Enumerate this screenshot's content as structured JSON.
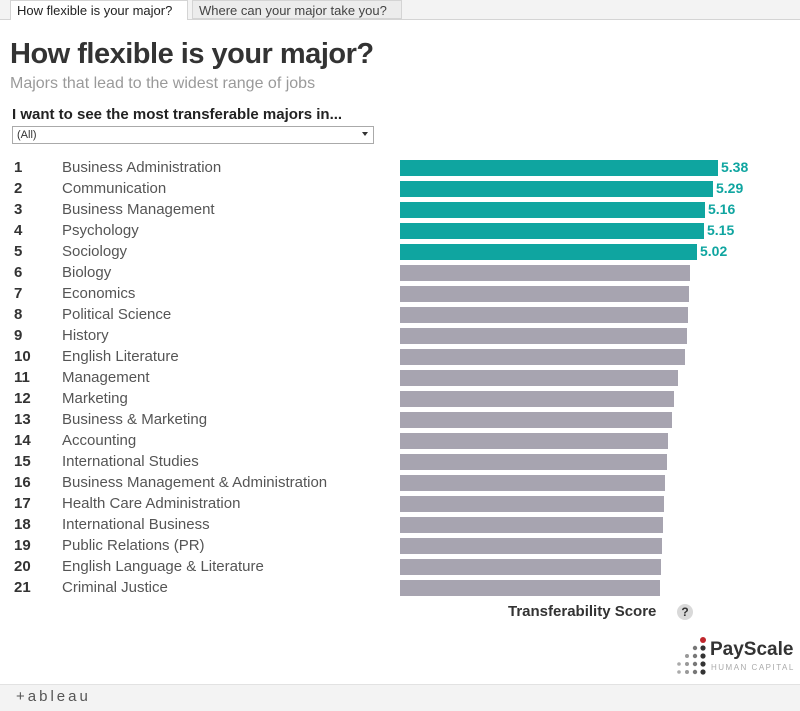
{
  "tabs": [
    {
      "label": "How flexible is your major?",
      "active": true
    },
    {
      "label": "Where can your major take you?",
      "active": false
    }
  ],
  "header": {
    "title": "How flexible is your major?",
    "subtitle": "Majors that lead to the widest range of jobs"
  },
  "filter": {
    "label": "I want to see the most transferable majors in...",
    "selected": "(All)"
  },
  "colors": {
    "highlight": "#0fa5a0",
    "other": "#a7a4b0"
  },
  "chart_data": {
    "type": "bar",
    "orientation": "horizontal",
    "xlabel": "Transferability Score",
    "xlim": [
      0,
      5.38
    ],
    "highlighted_count": 5,
    "rows": [
      {
        "rank": "1",
        "major": "Business Administration",
        "value": 5.38,
        "label": "5.38"
      },
      {
        "rank": "2",
        "major": "Communication",
        "value": 5.29,
        "label": "5.29"
      },
      {
        "rank": "3",
        "major": "Business Management",
        "value": 5.16,
        "label": "5.16"
      },
      {
        "rank": "4",
        "major": "Psychology",
        "value": 5.15,
        "label": "5.15"
      },
      {
        "rank": "5",
        "major": "Sociology",
        "value": 5.02,
        "label": "5.02"
      },
      {
        "rank": "6",
        "major": "Biology",
        "value": 4.9
      },
      {
        "rank": "7",
        "major": "Economics",
        "value": 4.89
      },
      {
        "rank": "8",
        "major": "Political Science",
        "value": 4.87
      },
      {
        "rank": "9",
        "major": "History",
        "value": 4.86
      },
      {
        "rank": "10",
        "major": "English Literature",
        "value": 4.82
      },
      {
        "rank": "11",
        "major": "Management",
        "value": 4.71
      },
      {
        "rank": "12",
        "major": "Marketing",
        "value": 4.64
      },
      {
        "rank": "13",
        "major": "Business & Marketing",
        "value": 4.6
      },
      {
        "rank": "14",
        "major": "Accounting",
        "value": 4.53
      },
      {
        "rank": "15",
        "major": "International Studies",
        "value": 4.51
      },
      {
        "rank": "16",
        "major": "Business Management & Administration",
        "value": 4.49
      },
      {
        "rank": "17",
        "major": "Health Care Administration",
        "value": 4.47
      },
      {
        "rank": "18",
        "major": "International Business",
        "value": 4.45
      },
      {
        "rank": "19",
        "major": "Public Relations (PR)",
        "value": 4.43
      },
      {
        "rank": "20",
        "major": "English Language & Literature",
        "value": 4.41
      },
      {
        "rank": "21",
        "major": "Criminal Justice",
        "value": 4.4
      }
    ]
  },
  "axis_help": "?",
  "logo": {
    "name": "PayScale",
    "tagline": "HUMAN CAPITAL"
  },
  "footer": {
    "text": "+ableau"
  }
}
